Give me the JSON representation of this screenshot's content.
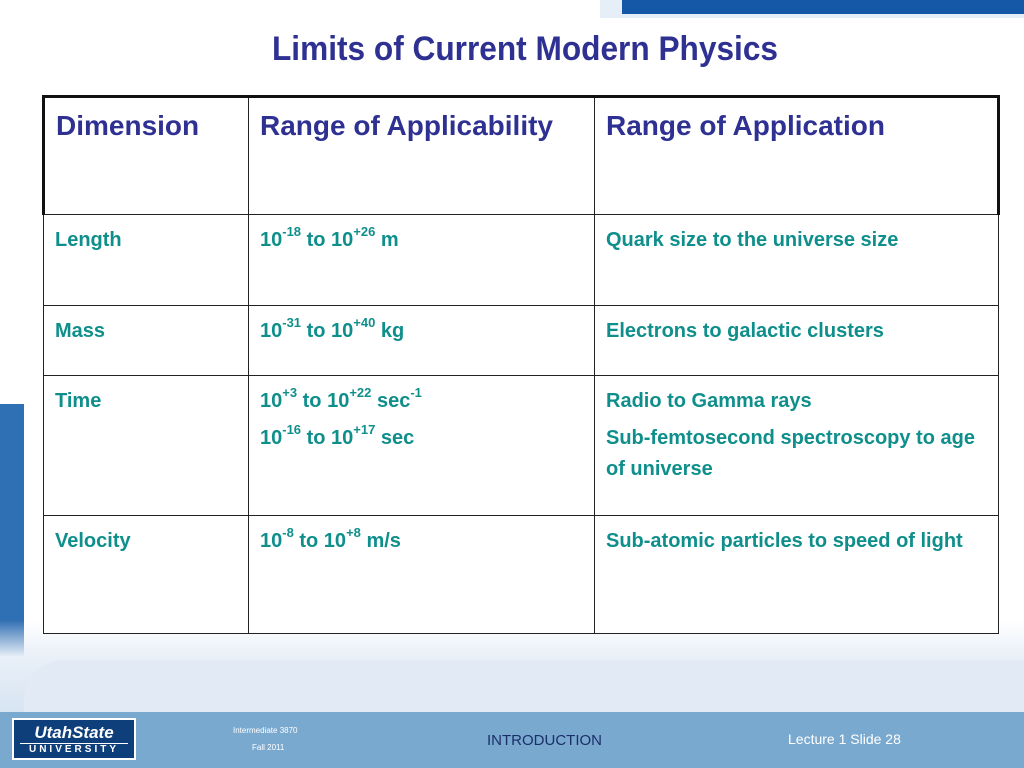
{
  "slide": {
    "title": "Limits of Current Modern Physics"
  },
  "table": {
    "headers": [
      "Dimension",
      "Range of Applicability",
      "Range of Application"
    ],
    "rows": [
      {
        "dimension": "Length",
        "range": [
          {
            "base": "10",
            "exp": "-18"
          },
          {
            "text": " to 10"
          },
          {
            "exp": "+26"
          },
          {
            "text": " m"
          }
        ],
        "application": "Quark size to the universe size"
      },
      {
        "dimension": "Mass",
        "range": [
          {
            "base": "10",
            "exp": "-31"
          },
          {
            "text": " to 10"
          },
          {
            "exp": "+40"
          },
          {
            "text": " kg"
          }
        ],
        "application": "Electrons to galactic clusters"
      },
      {
        "dimension": "Time",
        "range_lines": [
          [
            "10",
            "+3",
            " to 10",
            "+22",
            " sec",
            "-1"
          ],
          [
            "10",
            "-16",
            " to 10",
            "+17",
            " sec"
          ]
        ],
        "application_lines": [
          "Radio to Gamma rays",
          "Sub-femtosecond spectroscopy to age of universe"
        ]
      },
      {
        "dimension": "Velocity",
        "range": [
          {
            "base": "10",
            "exp": "-8"
          },
          {
            "text": " to 10"
          },
          {
            "exp": "+8"
          },
          {
            "text": " m/s"
          }
        ],
        "application": "Sub-atomic particles to speed of light"
      }
    ]
  },
  "footer": {
    "logo_line1": "UtahState",
    "logo_line2": "UNIVERSITY",
    "course": "Intermediate  3870",
    "term": "Fall 2011",
    "section": "INTRODUCTION",
    "lecture": "Lecture  1   Slide  28"
  },
  "colors": {
    "title": "#2e3192",
    "header_text": "#2e3192",
    "body_text": "#0f8f8c",
    "footer_bar": "#7aa9cf",
    "accent_band": "#1558a8"
  }
}
